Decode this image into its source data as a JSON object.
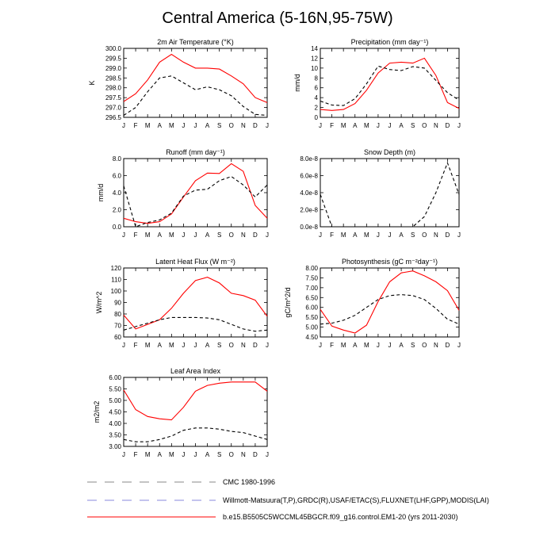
{
  "figure_title": "Central America (5-16N,95-75W)",
  "colors": {
    "model": "#ff0000",
    "obs": "#000000",
    "legend_dash": "#8888dd"
  },
  "legend": [
    {
      "label": "CMC 1980-1996",
      "style": "dash-gray"
    },
    {
      "label": "Willmott-Matsuura(T,P),GRDC(R),USAF/ETAC(S),FLUXNET(LHF,GPP),MODIS(LAI)",
      "style": "dash-blue"
    },
    {
      "label": "b.e15.B5505C5WCCML45BGCR.f09_g16.control.EM1-20 (yrs 2011-2030)",
      "style": "solid-red"
    }
  ],
  "chart_data": [
    {
      "type": "line",
      "title": "2m Air Temperature (°K)",
      "ylabel": "K",
      "categories": [
        "J",
        "F",
        "M",
        "A",
        "M",
        "J",
        "J",
        "A",
        "S",
        "O",
        "N",
        "D",
        "J"
      ],
      "ylim": [
        296.5,
        300.0
      ],
      "yticks": [
        296.5,
        297.0,
        297.5,
        298.0,
        298.5,
        299.0,
        299.5,
        300.0
      ],
      "ytick_labels": [
        "296.5",
        "297.0",
        "297.5",
        "298.0",
        "298.5",
        "299.0",
        "299.5",
        "300.0"
      ],
      "series": [
        {
          "name": "model",
          "style": "solid",
          "values": [
            297.3,
            297.7,
            298.4,
            299.3,
            299.7,
            299.3,
            299.0,
            299.0,
            298.95,
            298.6,
            298.2,
            297.5,
            297.25
          ]
        },
        {
          "name": "obs",
          "style": "dash",
          "values": [
            296.6,
            297.0,
            297.8,
            298.5,
            298.6,
            298.25,
            297.9,
            298.05,
            297.9,
            297.6,
            297.05,
            296.65,
            296.6
          ]
        }
      ]
    },
    {
      "type": "line",
      "title": "Precipitation (mm day⁻¹)",
      "ylabel": "mm/d",
      "categories": [
        "J",
        "F",
        "M",
        "A",
        "M",
        "J",
        "J",
        "A",
        "S",
        "O",
        "N",
        "D",
        "J"
      ],
      "ylim": [
        0,
        14
      ],
      "yticks": [
        0,
        2,
        4,
        6,
        8,
        10,
        12,
        14
      ],
      "ytick_labels": [
        "0",
        "2",
        "4",
        "6",
        "8",
        "10",
        "12",
        "14"
      ],
      "series": [
        {
          "name": "model",
          "style": "solid",
          "values": [
            1.6,
            1.4,
            1.6,
            2.8,
            5.5,
            9.0,
            11.0,
            11.2,
            11.0,
            12.0,
            8.5,
            3.0,
            1.8
          ]
        },
        {
          "name": "obs",
          "style": "dash",
          "values": [
            3.3,
            2.5,
            2.4,
            3.8,
            6.8,
            10.4,
            9.7,
            9.5,
            10.3,
            10.0,
            7.5,
            5.0,
            3.5
          ]
        }
      ]
    },
    {
      "type": "line",
      "title": "Runoff (mm day⁻¹)",
      "ylabel": "mm/d",
      "categories": [
        "J",
        "F",
        "M",
        "A",
        "M",
        "J",
        "J",
        "A",
        "S",
        "O",
        "N",
        "D",
        "J"
      ],
      "ylim": [
        0,
        8
      ],
      "yticks": [
        0,
        2,
        4,
        6,
        8
      ],
      "ytick_labels": [
        "0.0",
        "2.0",
        "4.0",
        "6.0",
        "8.0"
      ],
      "series": [
        {
          "name": "model",
          "style": "solid",
          "values": [
            1.0,
            0.6,
            0.4,
            0.6,
            1.5,
            3.5,
            5.4,
            6.3,
            6.25,
            7.4,
            6.5,
            2.5,
            1.0
          ]
        },
        {
          "name": "obs",
          "style": "dash",
          "values": [
            4.8,
            0.0,
            0.5,
            0.8,
            1.6,
            3.6,
            4.3,
            4.4,
            5.4,
            5.9,
            4.9,
            3.5,
            4.9
          ]
        }
      ]
    },
    {
      "type": "line",
      "title": "Snow Depth (m)",
      "ylabel": "",
      "categories": [
        "J",
        "F",
        "M",
        "A",
        "M",
        "J",
        "J",
        "A",
        "S",
        "O",
        "N",
        "D",
        "J"
      ],
      "ylim": [
        0,
        8e-08
      ],
      "yticks": [
        0,
        2e-08,
        4e-08,
        6e-08,
        8e-08
      ],
      "ytick_labels": [
        "0.0e-8",
        "2.0e-8",
        "4.0e-8",
        "6.0e-8",
        "8.0e-8"
      ],
      "series": [
        {
          "name": "obs",
          "style": "dash",
          "values": [
            3.8e-08,
            0,
            0,
            0,
            0,
            0,
            0,
            0,
            0,
            1.2e-08,
            4e-08,
            7.5e-08,
            3.8e-08
          ]
        }
      ]
    },
    {
      "type": "line",
      "title": "Latent Heat Flux (W m⁻²)",
      "ylabel": "W/m^2",
      "categories": [
        "J",
        "F",
        "M",
        "A",
        "M",
        "J",
        "J",
        "A",
        "S",
        "O",
        "N",
        "D",
        "J"
      ],
      "ylim": [
        60,
        120
      ],
      "yticks": [
        60,
        70,
        80,
        90,
        100,
        110,
        120
      ],
      "ytick_labels": [
        "60",
        "70",
        "80",
        "90",
        "100",
        "110",
        "120"
      ],
      "series": [
        {
          "name": "model",
          "style": "solid",
          "values": [
            79,
            67,
            71,
            75,
            85,
            98,
            109,
            112,
            107,
            98,
            96,
            92,
            78
          ]
        },
        {
          "name": "obs",
          "style": "dash",
          "values": [
            66,
            69,
            72,
            75,
            77,
            77,
            77,
            76.5,
            75,
            71,
            67,
            65,
            66
          ]
        }
      ]
    },
    {
      "type": "line",
      "title": "Photosynthesis (gC m⁻²day⁻¹)",
      "ylabel": "gC/m^2/d",
      "categories": [
        "J",
        "F",
        "M",
        "A",
        "M",
        "J",
        "J",
        "A",
        "S",
        "O",
        "N",
        "D",
        "J"
      ],
      "ylim": [
        4.5,
        8.0
      ],
      "yticks": [
        4.5,
        5.0,
        5.5,
        6.0,
        6.5,
        7.0,
        7.5,
        8.0
      ],
      "ytick_labels": [
        "4.50",
        "5.00",
        "5.50",
        "6.00",
        "6.50",
        "7.00",
        "7.50",
        "8.00"
      ],
      "series": [
        {
          "name": "model",
          "style": "solid",
          "values": [
            5.9,
            5.05,
            4.85,
            4.7,
            5.1,
            6.3,
            7.3,
            7.75,
            7.85,
            7.6,
            7.3,
            6.85,
            5.85
          ]
        },
        {
          "name": "obs",
          "style": "dash",
          "values": [
            5.15,
            5.2,
            5.35,
            5.6,
            6.0,
            6.4,
            6.6,
            6.65,
            6.6,
            6.4,
            5.95,
            5.4,
            5.15
          ]
        }
      ]
    },
    {
      "type": "line",
      "title": "Leaf Area Index",
      "ylabel": "m2/m2",
      "categories": [
        "J",
        "F",
        "M",
        "A",
        "M",
        "J",
        "J",
        "A",
        "S",
        "O",
        "N",
        "D",
        "J"
      ],
      "ylim": [
        3.0,
        6.0
      ],
      "yticks": [
        3.0,
        3.5,
        4.0,
        4.5,
        5.0,
        5.5,
        6.0
      ],
      "ytick_labels": [
        "3.00",
        "3.50",
        "4.00",
        "4.50",
        "5.00",
        "5.50",
        "6.00"
      ],
      "series": [
        {
          "name": "model",
          "style": "solid",
          "values": [
            5.45,
            4.6,
            4.3,
            4.2,
            4.15,
            4.7,
            5.4,
            5.65,
            5.75,
            5.8,
            5.8,
            5.8,
            5.4
          ]
        },
        {
          "name": "obs",
          "style": "dash",
          "values": [
            3.3,
            3.2,
            3.2,
            3.3,
            3.45,
            3.7,
            3.8,
            3.8,
            3.75,
            3.65,
            3.6,
            3.45,
            3.3
          ]
        }
      ]
    }
  ]
}
